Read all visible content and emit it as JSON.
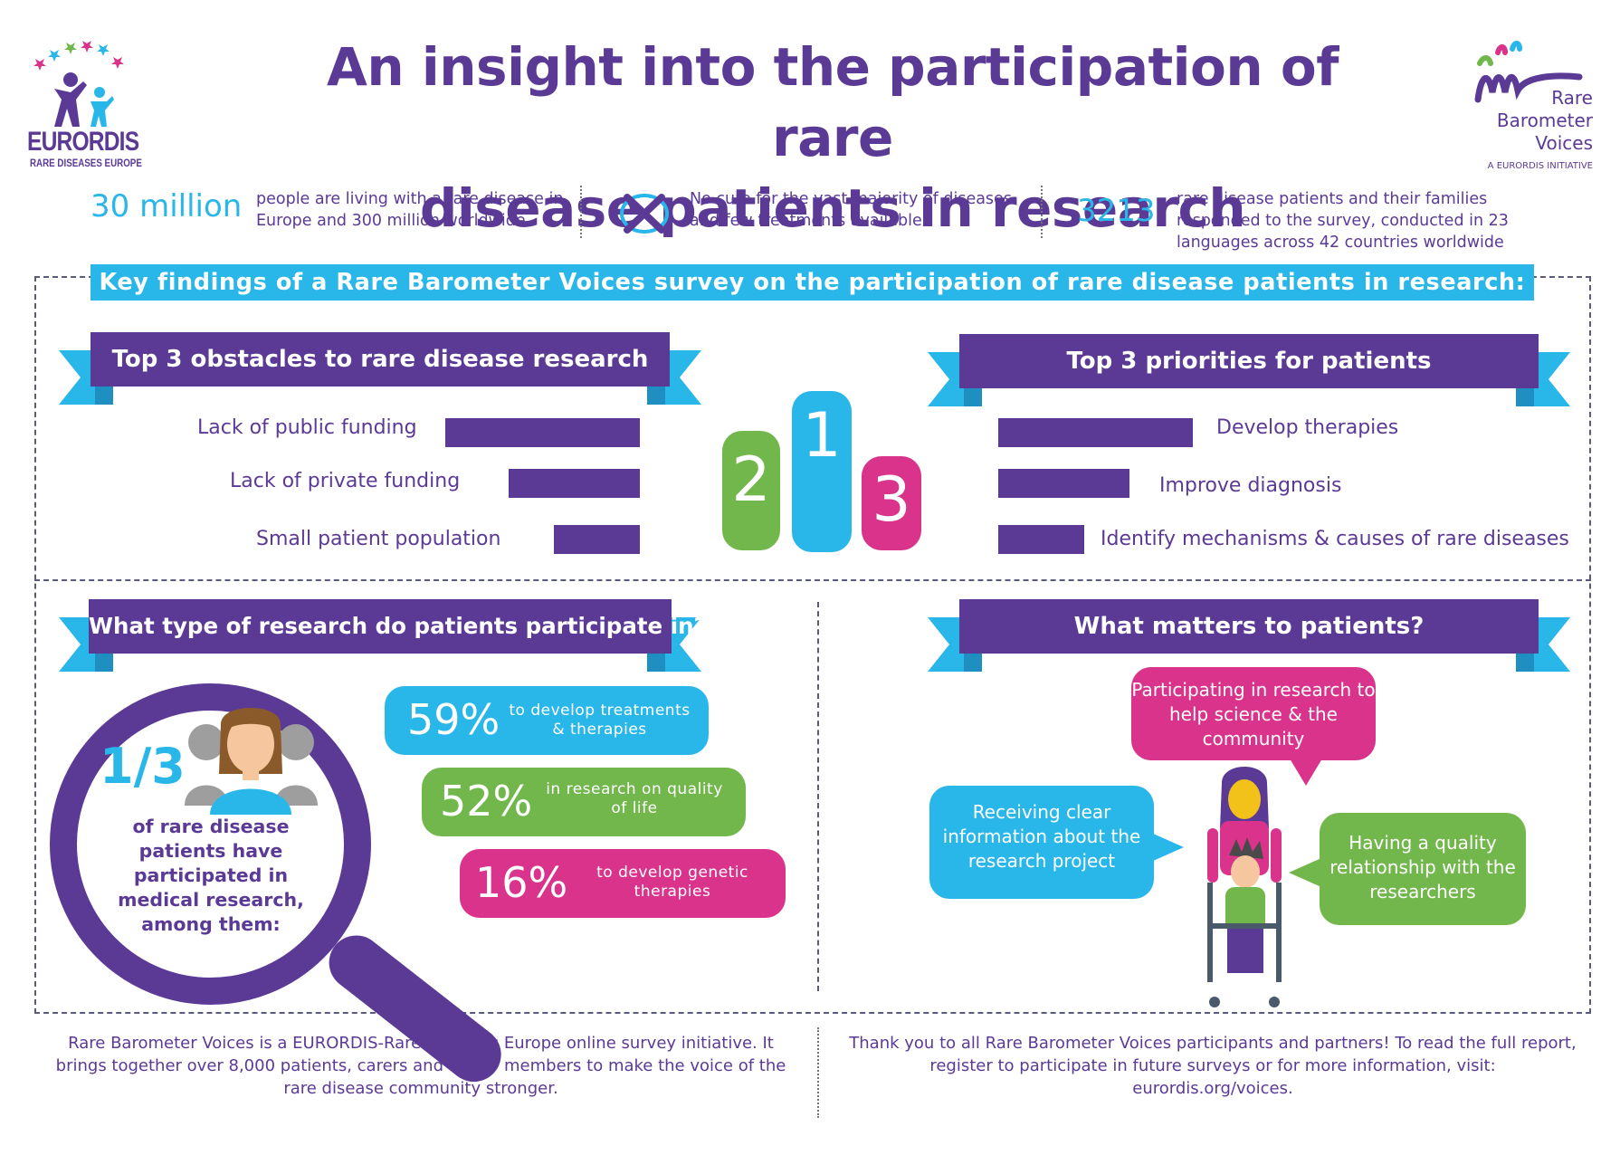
{
  "header": {
    "title_line1": "An insight into the participation of rare",
    "title_line2": "disease patients in research",
    "eurordis_name": "EURORDIS",
    "eurordis_sub": "RARE DISEASES EUROPE",
    "rbv_name_line1": "Rare",
    "rbv_name_line2": "Barometer",
    "rbv_name_line3": "Voices",
    "rbv_sub": "A EURORDIS INITIATIVE"
  },
  "stats": {
    "s1_big": "30 million",
    "s1_text": "people are living with a rare disease in Europe and 300 million worldwide",
    "s2_text": "No cure for the vast majority of diseases and few treatments available",
    "s3_big": "3213",
    "s3_text": "rare disease patients and their families responded to the survey, conducted in 23 languages across 42 countries worldwide"
  },
  "key_findings": "Key findings of a Rare Barometer Voices survey on the participation of rare disease patients in research:",
  "obstacles": {
    "title": "Top 3 obstacles to rare disease research",
    "items": [
      {
        "label": "Lack of public funding",
        "level": 1.0
      },
      {
        "label": "Lack of private funding",
        "level": 0.67
      },
      {
        "label": "Small patient population",
        "level": 0.44
      }
    ]
  },
  "priorities": {
    "title": "Top 3 priorities for patients",
    "items": [
      {
        "label": "Develop therapies",
        "level": 1.0
      },
      {
        "label": "Improve diagnosis",
        "level": 0.67
      },
      {
        "label": "Identify mechanisms & causes of rare diseases",
        "level": 0.44
      }
    ]
  },
  "podium": {
    "first": "1",
    "second": "2",
    "third": "3"
  },
  "research": {
    "title": "What type of research do patients participate in?",
    "fraction": "1/3",
    "fraction_text": "of rare disease patients have participated in medical research, among them:",
    "items": [
      {
        "pct": "59%",
        "text": "to develop treatments & therapies",
        "color": "#29b7ea"
      },
      {
        "pct": "52%",
        "text": "in research on quality of life",
        "color": "#72b74c"
      },
      {
        "pct": "16%",
        "text": "to develop genetic therapies",
        "color": "#d9338b"
      }
    ]
  },
  "matters": {
    "title": "What matters to patients?",
    "b1": "Participating in research to help science & the community",
    "b2": "Receiving clear information about the research project",
    "b3": "Having a quality relationship with the researchers"
  },
  "footer": {
    "left": "Rare Barometer Voices is a EURORDIS-Rare Diseases Europe online survey initiative. It brings together over 8,000 patients, carers and family members to make the voice of the rare disease community stronger.",
    "right_line1": "Thank you to all Rare Barometer Voices participants and partners! To read the full report,",
    "right_line2": "register to participate in future surveys or for more information, visit:",
    "right_line3": "eurordis.org/voices."
  },
  "colors": {
    "purple": "#5b3a96",
    "cyan": "#29b7ea",
    "green": "#72b74c",
    "pink": "#d9338b"
  }
}
